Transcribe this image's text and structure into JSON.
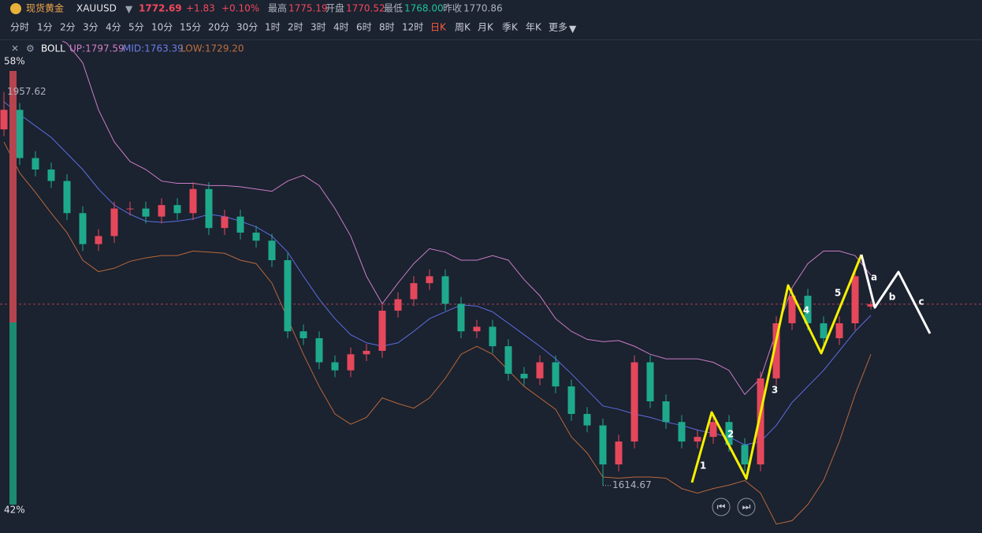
{
  "header": {
    "name": "现货黄金",
    "symbol": "XAUUSD",
    "price": "1772.69",
    "change": "+1.83",
    "change_pct": "+0.10%",
    "stats": [
      {
        "label": "最高",
        "value": "1775.19"
      },
      {
        "label": "开盘",
        "value": "1770.52"
      },
      {
        "label": "最低",
        "value": "1768.00"
      },
      {
        "label": "昨收",
        "value": "1770.86"
      }
    ]
  },
  "timeframes": [
    "分时",
    "1分",
    "2分",
    "3分",
    "4分",
    "5分",
    "10分",
    "15分",
    "20分",
    "30分",
    "1时",
    "2时",
    "3时",
    "4时",
    "6时",
    "8时",
    "12时",
    "日K",
    "周K",
    "月K",
    "季K",
    "年K",
    "更多"
  ],
  "indicator": {
    "name": "BOLL",
    "up": "UP:1797.59",
    "mid": "MID:1763.39",
    "low": "LOW:1729.20"
  },
  "sentiment": [
    {
      "value": 58,
      "label": "58%"
    },
    {
      "value": 42,
      "label": "42%"
    }
  ],
  "waves": {
    "labels": [
      "1",
      "2",
      "3",
      "4",
      "5",
      "a",
      "b",
      "c"
    ]
  },
  "chart_data": {
    "type": "candlestick",
    "up_color": "#e5485b",
    "down_color": "#1ea98d",
    "ylim": [
      1576,
      2002
    ],
    "open": [
      1925,
      1942,
      1900,
      1890,
      1880,
      1852,
      1825,
      1832,
      1856,
      1856,
      1849,
      1859,
      1852,
      1873,
      1839,
      1849,
      1835,
      1828,
      1811,
      1749,
      1743,
      1722,
      1715,
      1729,
      1732,
      1767,
      1777,
      1791,
      1797,
      1773,
      1749,
      1753,
      1736,
      1712,
      1708,
      1722,
      1701,
      1677,
      1667,
      1633,
      1653,
      1722,
      1688,
      1670,
      1653,
      1657,
      1670,
      1650,
      1633,
      1708,
      1756,
      1780,
      1756,
      1743,
      1756,
      1770.52
    ],
    "high": [
      1957.62,
      1948,
      1906,
      1896,
      1886,
      1858,
      1838,
      1862,
      1862,
      1862,
      1865,
      1865,
      1879,
      1879,
      1855,
      1855,
      1841,
      1834,
      1817,
      1755,
      1749,
      1728,
      1735,
      1738,
      1773,
      1783,
      1797,
      1803,
      1803,
      1779,
      1759,
      1759,
      1742,
      1718,
      1728,
      1728,
      1707,
      1683,
      1673,
      1659,
      1728,
      1728,
      1694,
      1676,
      1663,
      1676,
      1676,
      1656,
      1714,
      1762,
      1786,
      1786,
      1762,
      1762,
      1803,
      1775.19
    ],
    "low": [
      1919,
      1894,
      1884,
      1874,
      1846,
      1819,
      1819,
      1826,
      1850,
      1843,
      1843,
      1846,
      1846,
      1833,
      1833,
      1829,
      1822,
      1805,
      1743,
      1737,
      1716,
      1709,
      1709,
      1723,
      1726,
      1761,
      1771,
      1785,
      1767,
      1743,
      1743,
      1730,
      1706,
      1702,
      1702,
      1695,
      1671,
      1661,
      1614.67,
      1627,
      1647,
      1682,
      1664,
      1647,
      1647,
      1651,
      1644,
      1627,
      1627,
      1702,
      1750,
      1750,
      1737,
      1737,
      1750,
      1768.0
    ],
    "close": [
      1942,
      1900,
      1890,
      1880,
      1852,
      1825,
      1832,
      1856,
      1856,
      1849,
      1859,
      1852,
      1873,
      1839,
      1849,
      1835,
      1828,
      1811,
      1749,
      1743,
      1722,
      1715,
      1729,
      1732,
      1767,
      1777,
      1791,
      1797,
      1773,
      1749,
      1753,
      1736,
      1712,
      1708,
      1722,
      1701,
      1677,
      1667,
      1633,
      1653,
      1722,
      1688,
      1670,
      1653,
      1657,
      1670,
      1650,
      1633,
      1708,
      1756,
      1780,
      1756,
      1743,
      1756,
      1797,
      1772.69
    ],
    "bands": [
      {
        "color": "#c97ec4",
        "values": [
          2024,
          2017,
          2010,
          2007,
          2000,
          1983,
          1942,
          1914,
          1897,
          1890,
          1880,
          1878,
          1878,
          1876,
          1876,
          1875,
          1873,
          1871,
          1880,
          1885,
          1876,
          1856,
          1832,
          1797,
          1773,
          1791,
          1808,
          1821,
          1818,
          1811,
          1811,
          1815,
          1811,
          1794,
          1780,
          1760,
          1749,
          1742,
          1740,
          1741,
          1736,
          1729,
          1725,
          1725,
          1725,
          1722,
          1715,
          1694,
          1708,
          1749,
          1787,
          1808,
          1819,
          1819,
          1815,
          1798
        ]
      },
      {
        "color": "#5b6fe0",
        "values": [
          1949,
          1938,
          1928,
          1918,
          1904,
          1890,
          1873,
          1859,
          1851,
          1845,
          1844,
          1845,
          1847,
          1851,
          1849,
          1845,
          1840,
          1832,
          1818,
          1797,
          1777,
          1760,
          1746,
          1739,
          1736,
          1739,
          1749,
          1760,
          1766,
          1772,
          1771,
          1766,
          1756,
          1746,
          1736,
          1725,
          1712,
          1698,
          1684,
          1681,
          1677,
          1674,
          1670,
          1667,
          1663,
          1660,
          1657,
          1650,
          1653,
          1667,
          1687,
          1701,
          1715,
          1732,
          1749,
          1763
        ]
      },
      {
        "color": "#b8693a",
        "values": [
          1914,
          1887,
          1870,
          1852,
          1835,
          1811,
          1801,
          1804,
          1810,
          1813,
          1815,
          1815,
          1819,
          1818,
          1817,
          1811,
          1808,
          1791,
          1760,
          1729,
          1701,
          1677,
          1668,
          1674,
          1691,
          1686,
          1682,
          1691,
          1708,
          1729,
          1736,
          1729,
          1715,
          1701,
          1691,
          1681,
          1657,
          1643,
          1622,
          1621,
          1622,
          1622,
          1621,
          1612,
          1608,
          1612,
          1615,
          1619,
          1608,
          1581,
          1584,
          1598,
          1619,
          1653,
          1694,
          1729
        ]
      }
    ]
  }
}
